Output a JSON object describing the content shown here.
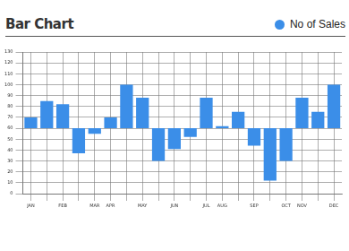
{
  "chart_data": {
    "type": "bar",
    "title": "Bar Chart",
    "categories": [
      "JAN",
      null,
      "FEB",
      null,
      "MAR",
      "APR",
      null,
      "MAY",
      null,
      "JUN",
      null,
      "JUL",
      "AUG",
      null,
      "SEP",
      null,
      "OCT",
      "NOV",
      null,
      "DEC"
    ],
    "series": [
      {
        "name": "No of Sales",
        "color": "#3b8ee8",
        "values": [
          70,
          85,
          82,
          37,
          55,
          70,
          100,
          88,
          30,
          41,
          52,
          88,
          62,
          75,
          44,
          12,
          30,
          88,
          75,
          100
        ]
      }
    ],
    "base": 60,
    "ylim": [
      0,
      130
    ],
    "yticks": [
      0,
      10,
      20,
      30,
      40,
      50,
      60,
      70,
      80,
      90,
      100,
      110,
      120,
      130
    ],
    "grid": true,
    "legend": "top-right"
  }
}
